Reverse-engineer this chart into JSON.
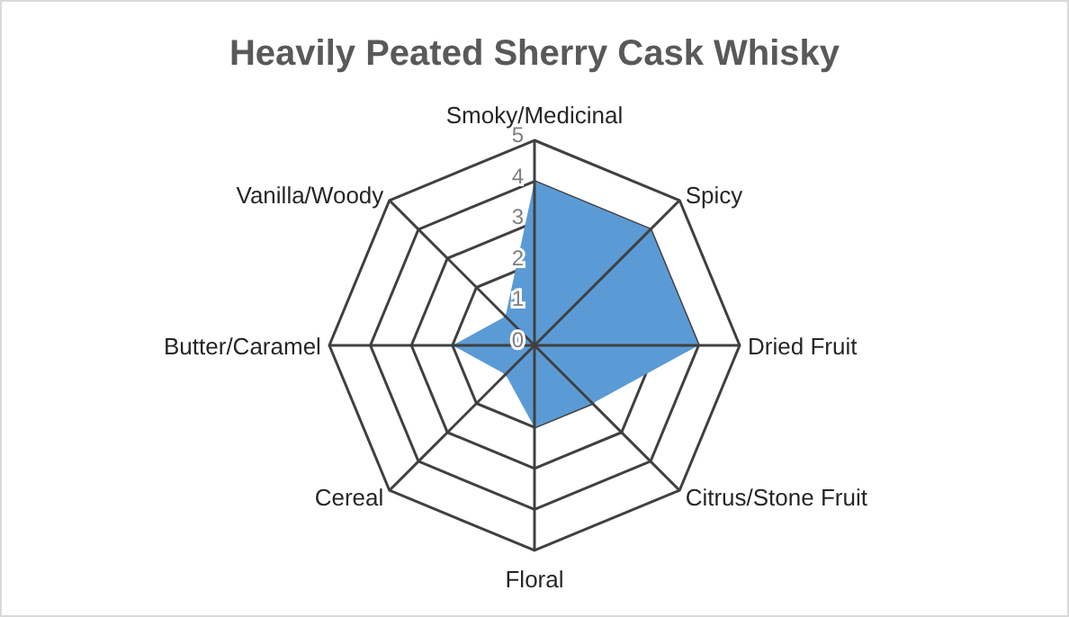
{
  "chart_data": {
    "type": "radar",
    "title": "Heavily Peated Sherry Cask Whisky",
    "categories": [
      "Smoky/Medicinal",
      "Spicy",
      "Dried Fruit",
      "Citrus/Stone Fruit",
      "Floral",
      "Cereal",
      "Butter/Caramel",
      "Vanilla/Woody"
    ],
    "series": [
      {
        "color": "#5b9bd5",
        "values": [
          4,
          4,
          4,
          2,
          2,
          1,
          2,
          1
        ]
      }
    ],
    "ylim": [
      0,
      5
    ],
    "yticks": [
      0,
      1,
      2,
      3,
      4,
      5
    ],
    "grid": true
  }
}
